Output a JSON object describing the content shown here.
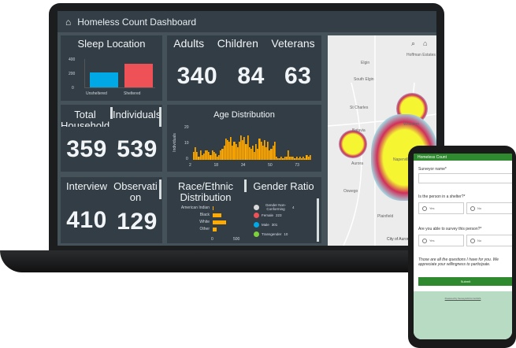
{
  "dashboard": {
    "title": "Homeless Count Dashboard",
    "sleep_location": {
      "title": "Sleep Location",
      "chart_data": {
        "type": "bar",
        "categories": [
          "Unsheltered",
          "Sheltered"
        ],
        "values": [
          210,
          329
        ],
        "colors": [
          "#00a9e6",
          "#ee5257"
        ],
        "yticks": [
          "400",
          "200",
          "0"
        ],
        "ylim": [
          0,
          400
        ]
      }
    },
    "indicators": [
      {
        "label": "Adults",
        "value": "340"
      },
      {
        "label": "Children",
        "value": "84"
      },
      {
        "label": "Veterans",
        "value": "63"
      }
    ],
    "households": {
      "label": "Total Household",
      "value": "359"
    },
    "individuals": {
      "label": "Individuals",
      "value": "539"
    },
    "age_distribution": {
      "title": "Age Distribution",
      "chart_data": {
        "type": "bar",
        "ylabel": "Individuals",
        "yticks": [
          "20",
          "10",
          "0"
        ],
        "ylim": [
          0,
          20
        ],
        "xticks": [
          "2",
          "18",
          "34",
          "50",
          "73"
        ],
        "color": "#ffaa00",
        "values": [
          5,
          8,
          5,
          2,
          6,
          3,
          4,
          6,
          6,
          5,
          3,
          6,
          5,
          4,
          2,
          3,
          6,
          7,
          9,
          13,
          12,
          11,
          14,
          9,
          11,
          10,
          8,
          11,
          15,
          12,
          14,
          10,
          15,
          8,
          7,
          9,
          5,
          10,
          7,
          13,
          11,
          9,
          12,
          8,
          11,
          6,
          7,
          9,
          11,
          2,
          1,
          1,
          2,
          1,
          2,
          2,
          6,
          2,
          2,
          2,
          1,
          2,
          1,
          2,
          1,
          2,
          1,
          3,
          2,
          3
        ]
      }
    },
    "interview": {
      "label": "Interview",
      "value": "410"
    },
    "observation": {
      "label": "Observation",
      "value": "129"
    },
    "race": {
      "title": "Race/Ethnic Distribution",
      "chart_data": {
        "type": "bar",
        "orientation": "horizontal",
        "categories": [
          "American Indian",
          "Black",
          "White",
          "Other"
        ],
        "values": [
          20,
          190,
          280,
          90
        ],
        "xticks": [
          "0",
          "500"
        ],
        "xlim": [
          0,
          500
        ],
        "color": "#ffaa00"
      }
    },
    "gender": {
      "title": "Gender Ratio",
      "items": [
        {
          "label": "Gender Non-Conforming",
          "value": "4",
          "color": "#d9d9d9"
        },
        {
          "label": "Female",
          "value": "223",
          "color": "#ee5257"
        },
        {
          "label": "Male",
          "value": "301",
          "color": "#00a9e6"
        },
        {
          "label": "Transgender",
          "value": "10",
          "color": "#7dd13b"
        }
      ]
    },
    "map": {
      "towns": [
        "Hoffman Estates",
        "Elgin",
        "South Elgin",
        "St Charles",
        "Batavia",
        "Wheaton",
        "Naperville",
        "Aurora",
        "Oswego",
        "Plainfield"
      ],
      "attribution": "City of Aurora"
    }
  },
  "survey": {
    "title": "Homeless Count",
    "q1": "Surveyor name*",
    "q2": "Is the person in a shelter?*",
    "q3": "Are you able to survey this person?*",
    "yes": "Yes",
    "no": "No",
    "closing": "Those are all the questions I have for you. We appreciate your willingness to participate.",
    "submit": "Submit",
    "powered": "Powered by Survey123 for ArcGIS",
    "accent": "#2f8a2f"
  }
}
